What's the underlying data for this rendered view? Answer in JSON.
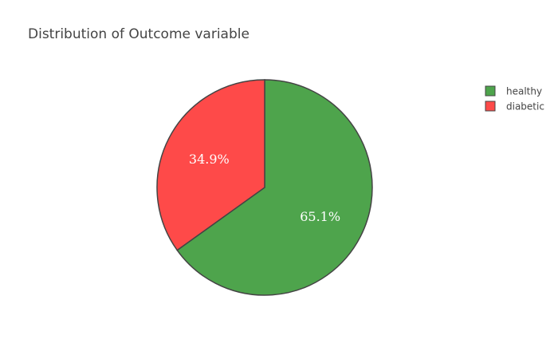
{
  "chart_data": {
    "type": "pie",
    "title": "Distribution of Outcome variable",
    "slices": [
      {
        "label": "healthy",
        "value": 65.1,
        "display": "65.1%",
        "color": "#4ea44c"
      },
      {
        "label": "diabetic",
        "value": 34.9,
        "display": "34.9%",
        "color": "#fe4a49"
      }
    ],
    "legend_position": "top-right",
    "slice_border_color": "#444444"
  }
}
